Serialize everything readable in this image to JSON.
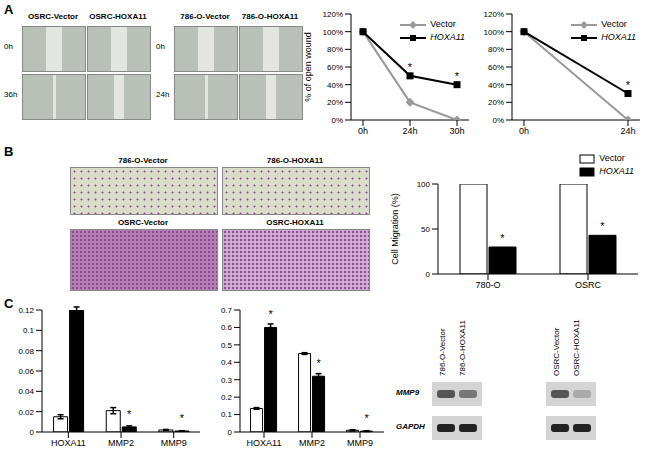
{
  "panel_labels": [
    "A",
    "B",
    "C"
  ],
  "images": {
    "scratch_osrc": {
      "columns": [
        "OSRC-Vector",
        "OSRC-HOXA11"
      ],
      "rows": [
        "0h",
        "36h"
      ]
    },
    "scratch_786o": {
      "columns": [
        "786-O-Vector",
        "786-O-HOXA11"
      ],
      "rows": [
        "0h",
        "24h"
      ]
    },
    "transwell": {
      "rows": [
        [
          "786-O-Vector",
          "786-O-HOXA11"
        ],
        [
          "OSRC-Vector",
          "OSRC-HOXA11"
        ]
      ]
    },
    "western_blot": {
      "blots": [
        {
          "lanes": [
            "786-O-Vector",
            "786-O-HOXA11"
          ]
        },
        {
          "lanes": [
            "OSRC-Vector",
            "OSRC-HOXA11"
          ]
        }
      ],
      "rows": [
        "MMP9",
        "GAPDH"
      ]
    }
  },
  "chart_data": [
    {
      "type": "line",
      "y_label": "% of open wound",
      "categories": [
        "0h",
        "24h",
        "30h"
      ],
      "series": [
        {
          "name": "Vector",
          "color": "#999999",
          "marker": "diamond",
          "values": [
            100,
            20,
            0
          ]
        },
        {
          "name": "HOXA11",
          "color": "#000000",
          "marker": "square",
          "values": [
            100,
            50,
            40
          ]
        }
      ],
      "ylim": [
        0,
        120
      ],
      "yticks": [
        {
          "value": 0,
          "label": "0%"
        },
        {
          "value": 20,
          "label": "20%"
        },
        {
          "value": 40,
          "label": "40%"
        },
        {
          "value": 60,
          "label": "60%"
        },
        {
          "value": 80,
          "label": "80%"
        },
        {
          "value": 100,
          "label": "100%"
        },
        {
          "value": 120,
          "label": "120%"
        }
      ],
      "grid": false,
      "legend": "upper right",
      "annotations": [
        {
          "category": "24h",
          "series": "HOXA11",
          "text": "*"
        },
        {
          "category": "30h",
          "series": "HOXA11",
          "text": "*"
        }
      ]
    },
    {
      "type": "line",
      "categories": [
        "0h",
        "24h"
      ],
      "series": [
        {
          "name": "Vector",
          "color": "#999999",
          "marker": "diamond",
          "values": [
            100,
            0
          ]
        },
        {
          "name": "HOXA11",
          "color": "#000000",
          "marker": "square",
          "values": [
            100,
            30
          ]
        }
      ],
      "ylim": [
        0,
        120
      ],
      "yticks": [
        {
          "value": 0,
          "label": "0%"
        },
        {
          "value": 20,
          "label": "20%"
        },
        {
          "value": 40,
          "label": "40%"
        },
        {
          "value": 60,
          "label": "60%"
        },
        {
          "value": 80,
          "label": "80%"
        },
        {
          "value": 100,
          "label": "100%"
        },
        {
          "value": 120,
          "label": "120%"
        }
      ],
      "grid": false,
      "legend": "upper right",
      "annotations": [
        {
          "category": "24h",
          "series": "HOXA11",
          "text": "*"
        }
      ]
    },
    {
      "type": "bar",
      "y_label": "Cell Migration (%)",
      "categories": [
        "780-O",
        "OSRC"
      ],
      "series": [
        {
          "name": "Vector",
          "color": "#ffffff",
          "values": [
            100,
            100
          ]
        },
        {
          "name": "HOXA11",
          "color": "#000000",
          "values": [
            30,
            43
          ]
        }
      ],
      "ylim": [
        0,
        100
      ],
      "yticks": [
        0,
        50,
        100
      ],
      "grid": false,
      "legend": "top right",
      "annotations": [
        {
          "category": "780-O",
          "series": "HOXA11",
          "text": "*"
        },
        {
          "category": "OSRC",
          "series": "HOXA11",
          "text": "*"
        }
      ]
    },
    {
      "type": "bar",
      "categories": [
        "HOXA11",
        "MMP2",
        "MMP9"
      ],
      "series": [
        {
          "name": "Vector",
          "color": "#ffffff",
          "values": [
            0.015,
            0.021,
            0.002
          ],
          "errors": [
            0.002,
            0.003,
            0.0005
          ]
        },
        {
          "name": "HOXA11",
          "color": "#000000",
          "values": [
            0.12,
            0.005,
            0.001
          ],
          "errors": [
            0.003,
            0.001,
            0.0003
          ]
        }
      ],
      "ylim": [
        0,
        0.12
      ],
      "yticks": [
        0,
        0.02,
        0.04,
        0.06,
        0.08,
        0.1,
        0.12
      ],
      "grid": false,
      "annotations": [
        {
          "category": "HOXA11",
          "series": "HOXA11",
          "text": "*"
        },
        {
          "category": "MMP2",
          "series": "HOXA11",
          "text": "*"
        },
        {
          "category": "MMP9",
          "series": "HOXA11",
          "text": "*"
        }
      ]
    },
    {
      "type": "bar",
      "categories": [
        "HOXA11",
        "MMP2",
        "MMP9"
      ],
      "series": [
        {
          "name": "Vector",
          "color": "#ffffff",
          "values": [
            0.135,
            0.45,
            0.01
          ],
          "errors": [
            0.005,
            0.005,
            0.003
          ]
        },
        {
          "name": "HOXA11",
          "color": "#000000",
          "values": [
            0.6,
            0.32,
            0.005
          ],
          "errors": [
            0.02,
            0.015,
            0.002
          ]
        }
      ],
      "ylim": [
        0,
        0.7
      ],
      "yticks": [
        0,
        0.1,
        0.2,
        0.3,
        0.4,
        0.5,
        0.6,
        0.7
      ],
      "grid": false,
      "annotations": [
        {
          "category": "HOXA11",
          "series": "HOXA11",
          "text": "*"
        },
        {
          "category": "MMP2",
          "series": "HOXA11",
          "text": "*"
        },
        {
          "category": "MMP9",
          "series": "HOXA11",
          "text": "*"
        }
      ]
    }
  ]
}
